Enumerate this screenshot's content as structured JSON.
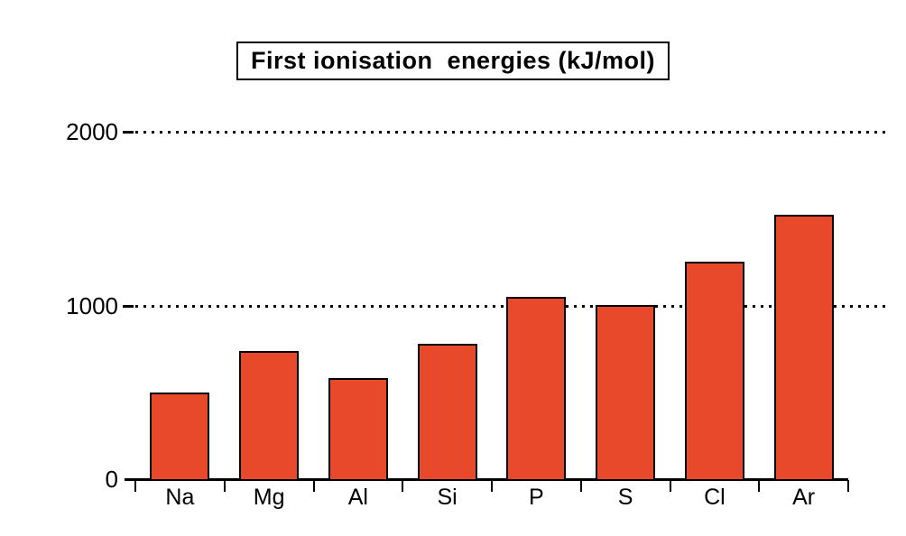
{
  "title": "First ionisation  energies (kJ/mol)",
  "chart_data": {
    "type": "bar",
    "title": "First ionisation  energies (kJ/mol)",
    "categories": [
      "Na",
      "Mg",
      "Al",
      "Si",
      "P",
      "S",
      "Cl",
      "Ar"
    ],
    "values": [
      500,
      740,
      580,
      780,
      1050,
      1000,
      1250,
      1520
    ],
    "xlabel": "",
    "ylabel": "",
    "ylim": [
      0,
      2000
    ],
    "yticks": [
      0,
      1000,
      2000
    ],
    "gridlines": [
      1000,
      2000
    ],
    "grid_style": "dotted",
    "legend_position": "none",
    "bar_color": "#e8492a",
    "bar_border_color": "#000000",
    "background_color": "#ffffff",
    "text_color": "#000000"
  }
}
